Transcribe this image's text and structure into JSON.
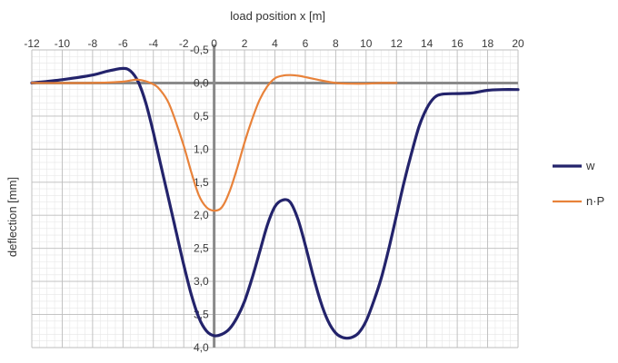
{
  "chart_data": {
    "type": "line",
    "xlabel": "load position  x  [m]",
    "ylabel": "deflection  [mm]",
    "xlim": [
      -12,
      20
    ],
    "ylim": [
      -0.5,
      4.0
    ],
    "y_inverted": true,
    "x_axis_position": "top",
    "grid": true,
    "legend_position": "right",
    "x_ticks": [
      -12,
      -10,
      -8,
      -6,
      -4,
      -2,
      0,
      2,
      4,
      6,
      8,
      10,
      12,
      14,
      16,
      18,
      20
    ],
    "x_tick_labels": [
      "-12",
      "-10",
      "-8",
      "-6",
      "-4",
      "-2",
      "0",
      "2",
      "4",
      "6",
      "8",
      "10",
      "12",
      "14",
      "16",
      "18",
      "20"
    ],
    "y_ticks": [
      -0.5,
      0.0,
      0.5,
      1.0,
      1.5,
      2.0,
      2.5,
      3.0,
      3.5,
      4.0
    ],
    "y_tick_labels": [
      "-0,5",
      "0,0",
      "0,5",
      "1,0",
      "1,5",
      "2,0",
      "2,5",
      "3,0",
      "3,5",
      "4,0"
    ],
    "series": [
      {
        "name": "w",
        "color": "#23236b",
        "x": [
          -12,
          -10,
          -8,
          -7,
          -6,
          -5.5,
          -5,
          -4.5,
          -4,
          -3.5,
          -3,
          -2.5,
          -2,
          -1.5,
          -1,
          -0.5,
          0,
          0.5,
          1,
          1.5,
          2,
          2.5,
          3,
          3.5,
          4,
          4.5,
          5,
          5.5,
          6,
          6.5,
          7,
          7.5,
          8,
          8.5,
          9,
          9.5,
          10,
          10.5,
          11,
          11.5,
          12,
          12.5,
          13,
          13.5,
          14,
          14.5,
          15,
          16,
          17,
          18,
          19,
          20
        ],
        "y": [
          0.0,
          -0.05,
          -0.12,
          -0.18,
          -0.22,
          -0.18,
          -0.02,
          0.3,
          0.75,
          1.25,
          1.75,
          2.25,
          2.75,
          3.2,
          3.55,
          3.75,
          3.82,
          3.8,
          3.72,
          3.55,
          3.3,
          2.95,
          2.55,
          2.15,
          1.87,
          1.77,
          1.8,
          2.05,
          2.45,
          2.9,
          3.3,
          3.6,
          3.78,
          3.85,
          3.85,
          3.78,
          3.6,
          3.3,
          2.95,
          2.5,
          2.0,
          1.5,
          1.05,
          0.65,
          0.38,
          0.22,
          0.17,
          0.16,
          0.15,
          0.11,
          0.1,
          0.1
        ]
      },
      {
        "name": "n·P",
        "color": "#e8823a",
        "x": [
          -12,
          -8,
          -6,
          -5,
          -4,
          -3.5,
          -3,
          -2.5,
          -2,
          -1.5,
          -1,
          -0.5,
          0,
          0.5,
          1,
          1.5,
          2,
          2.5,
          3,
          3.5,
          4,
          4.5,
          5,
          5.5,
          6,
          7,
          8,
          9,
          10,
          11,
          12
        ],
        "y": [
          0.0,
          0.0,
          -0.02,
          -0.05,
          0.02,
          0.12,
          0.3,
          0.6,
          0.95,
          1.35,
          1.7,
          1.88,
          1.93,
          1.88,
          1.65,
          1.3,
          0.9,
          0.55,
          0.25,
          0.05,
          -0.07,
          -0.11,
          -0.12,
          -0.11,
          -0.09,
          -0.04,
          0.0,
          0.01,
          0.01,
          0.0,
          0.0
        ]
      }
    ]
  }
}
